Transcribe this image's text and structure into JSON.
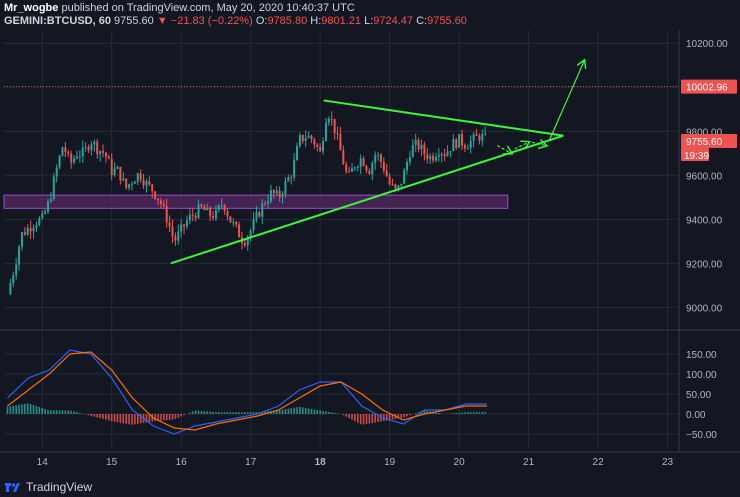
{
  "header": {
    "author": "Mr_wogbe",
    "published": "published on TradingView.com, May 20, 2020 10:40:37 UTC",
    "symbol": "GEMINI:BTCUSD, 60",
    "last": "9755.60",
    "change": "▼ −21.83 (−0.22%)",
    "o_label": "O:",
    "o_val": "9785.80",
    "h_label": "H:",
    "h_val": "9801.21",
    "l_label": "L:",
    "l_val": "9724.47",
    "c_label": "C:",
    "c_val": "9755.60"
  },
  "footer": {
    "brand": "TradingView"
  },
  "colors": {
    "background": "#131722",
    "grid": "#262a36",
    "up": "#26a69a",
    "down": "#ef5350",
    "trendline": "#3df53d",
    "zone": "#5a2a66",
    "macd_line": "#2962ff",
    "signal_line": "#ff6d00"
  },
  "chart_data": [
    {
      "type": "candlestick",
      "symbol": "GEMINI:BTCUSD",
      "interval": "60",
      "x_tick_labels": [
        "14",
        "15",
        "16",
        "17",
        "18",
        "19",
        "20",
        "21",
        "22",
        "23"
      ],
      "y_tick_labels": [
        "9000.00",
        "9200.00",
        "9400.00",
        "9600.00",
        "9800.00",
        "10000.00",
        "10200.00"
      ],
      "ylim": [
        8920,
        10260
      ],
      "xlim": [
        13.45,
        23.15
      ],
      "price_labels": {
        "target": {
          "value": 10002.96,
          "text": "10002.96"
        },
        "last": {
          "value": 9755.6,
          "text": "9755.60"
        },
        "countdown": {
          "text": "19:39"
        }
      },
      "close_path": [
        [
          13.5,
          9060
        ],
        [
          13.6,
          9180
        ],
        [
          13.7,
          9330
        ],
        [
          13.8,
          9360
        ],
        [
          13.9,
          9390
        ],
        [
          14.0,
          9400
        ],
        [
          14.1,
          9480
        ],
        [
          14.2,
          9620
        ],
        [
          14.3,
          9740
        ],
        [
          14.4,
          9650
        ],
        [
          14.5,
          9700
        ],
        [
          14.6,
          9700
        ],
        [
          14.7,
          9760
        ],
        [
          14.8,
          9720
        ],
        [
          14.9,
          9700
        ],
        [
          15.0,
          9620
        ],
        [
          15.1,
          9620
        ],
        [
          15.2,
          9540
        ],
        [
          15.3,
          9580
        ],
        [
          15.4,
          9610
        ],
        [
          15.5,
          9560
        ],
        [
          15.6,
          9530
        ],
        [
          15.7,
          9480
        ],
        [
          15.8,
          9400
        ],
        [
          15.9,
          9300
        ],
        [
          16.0,
          9350
        ],
        [
          16.1,
          9400
        ],
        [
          16.2,
          9430
        ],
        [
          16.3,
          9450
        ],
        [
          16.4,
          9420
        ],
        [
          16.5,
          9420
        ],
        [
          16.6,
          9480
        ],
        [
          16.7,
          9400
        ],
        [
          16.8,
          9350
        ],
        [
          16.9,
          9300
        ],
        [
          17.0,
          9350
        ],
        [
          17.1,
          9420
        ],
        [
          17.2,
          9480
        ],
        [
          17.3,
          9520
        ],
        [
          17.4,
          9500
        ],
        [
          17.5,
          9560
        ],
        [
          17.6,
          9620
        ],
        [
          17.7,
          9760
        ],
        [
          17.8,
          9780
        ],
        [
          17.9,
          9760
        ],
        [
          18.0,
          9700
        ],
        [
          18.1,
          9900
        ],
        [
          18.2,
          9820
        ],
        [
          18.3,
          9700
        ],
        [
          18.4,
          9580
        ],
        [
          18.5,
          9650
        ],
        [
          18.6,
          9680
        ],
        [
          18.7,
          9620
        ],
        [
          18.8,
          9700
        ],
        [
          18.9,
          9650
        ],
        [
          19.0,
          9560
        ],
        [
          19.1,
          9520
        ],
        [
          19.2,
          9600
        ],
        [
          19.3,
          9720
        ],
        [
          19.4,
          9740
        ],
        [
          19.5,
          9700
        ],
        [
          19.6,
          9680
        ],
        [
          19.7,
          9720
        ],
        [
          19.8,
          9700
        ],
        [
          19.9,
          9740
        ],
        [
          20.0,
          9760
        ],
        [
          20.1,
          9740
        ],
        [
          20.2,
          9760
        ],
        [
          20.3,
          9780
        ],
        [
          20.4,
          9760
        ]
      ],
      "annotations": {
        "triangle_upper": [
          [
            18.05,
            9940
          ],
          [
            21.5,
            9780
          ]
        ],
        "triangle_lower": [
          [
            15.85,
            9200
          ],
          [
            21.5,
            9780
          ]
        ],
        "path_arrows": [
          [
            [
              20.55,
              9735
            ],
            [
              20.75,
              9700
            ]
          ],
          [
            [
              20.8,
              9720
            ],
            [
              21.0,
              9750
            ]
          ],
          [
            [
              21.05,
              9750
            ],
            [
              21.25,
              9735
            ]
          ],
          [
            [
              21.3,
              9760
            ],
            [
              21.8,
              10120
            ]
          ]
        ],
        "zone": {
          "x": [
            13.45,
            20.7
          ],
          "y": [
            9450,
            9510
          ]
        },
        "target_level": 10002.96
      }
    },
    {
      "type": "macd",
      "y_tick_labels": [
        "150.00",
        "100.00",
        "50.00",
        "0.00",
        "−50.00"
      ],
      "ylim": [
        -85,
        190
      ],
      "macd": [
        [
          13.5,
          40
        ],
        [
          13.8,
          90
        ],
        [
          14.1,
          110
        ],
        [
          14.4,
          160
        ],
        [
          14.7,
          150
        ],
        [
          15.0,
          90
        ],
        [
          15.3,
          10
        ],
        [
          15.6,
          -30
        ],
        [
          15.9,
          -50
        ],
        [
          16.2,
          -30
        ],
        [
          16.5,
          -20
        ],
        [
          16.8,
          -10
        ],
        [
          17.1,
          0
        ],
        [
          17.4,
          20
        ],
        [
          17.7,
          60
        ],
        [
          18.0,
          80
        ],
        [
          18.3,
          80
        ],
        [
          18.6,
          20
        ],
        [
          18.9,
          -10
        ],
        [
          19.2,
          -25
        ],
        [
          19.5,
          10
        ],
        [
          19.8,
          10
        ],
        [
          20.1,
          25
        ],
        [
          20.4,
          25
        ]
      ],
      "signal": [
        [
          13.5,
          20
        ],
        [
          13.8,
          60
        ],
        [
          14.1,
          100
        ],
        [
          14.4,
          150
        ],
        [
          14.7,
          155
        ],
        [
          15.0,
          110
        ],
        [
          15.3,
          40
        ],
        [
          15.6,
          -10
        ],
        [
          15.9,
          -35
        ],
        [
          16.2,
          -40
        ],
        [
          16.5,
          -25
        ],
        [
          16.8,
          -15
        ],
        [
          17.1,
          -5
        ],
        [
          17.4,
          10
        ],
        [
          17.7,
          40
        ],
        [
          18.0,
          70
        ],
        [
          18.3,
          80
        ],
        [
          18.6,
          50
        ],
        [
          18.9,
          10
        ],
        [
          19.2,
          -15
        ],
        [
          19.5,
          0
        ],
        [
          19.8,
          10
        ],
        [
          20.1,
          20
        ],
        [
          20.4,
          20
        ]
      ]
    }
  ]
}
